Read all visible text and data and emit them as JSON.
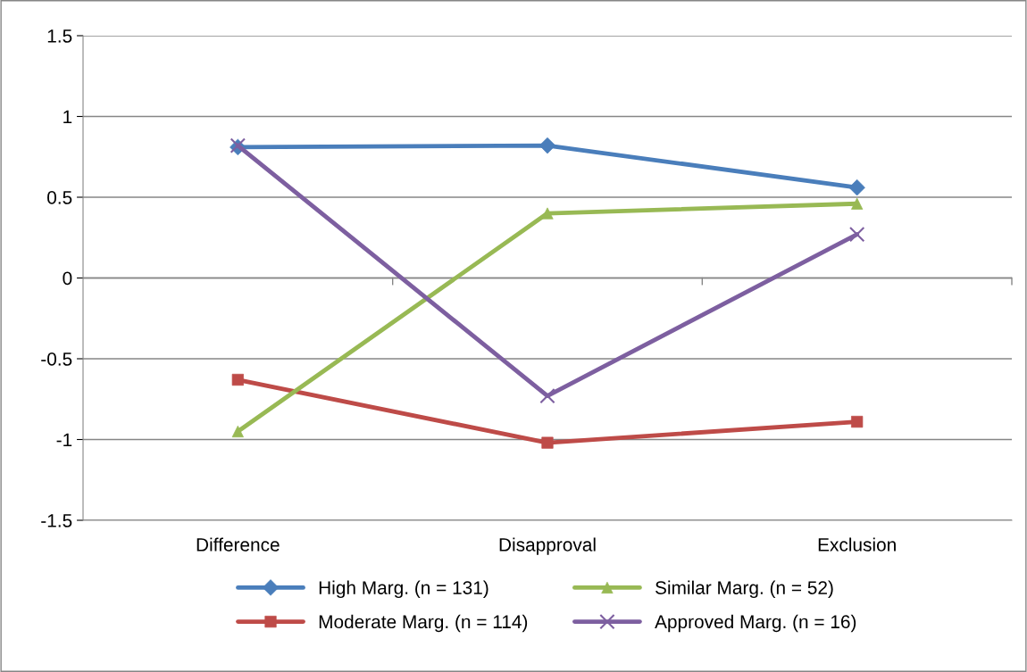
{
  "chart_data": {
    "type": "line",
    "categories": [
      "Difference",
      "Disapproval",
      "Exclusion"
    ],
    "series": [
      {
        "name": "High Marg. (n = 131)",
        "color": "#4a7ebb",
        "marker": "diamond",
        "values": [
          0.81,
          0.82,
          0.56
        ]
      },
      {
        "name": "Moderate Marg. (n = 114)",
        "color": "#be4b48",
        "marker": "square",
        "values": [
          -0.63,
          -1.02,
          -0.89
        ]
      },
      {
        "name": "Similar Marg. (n = 52)",
        "color": "#98b954",
        "marker": "triangle",
        "values": [
          -0.95,
          0.4,
          0.46
        ]
      },
      {
        "name": "Approved Marg. (n = 16)",
        "color": "#7d5fa0",
        "marker": "cross",
        "values": [
          0.82,
          -0.73,
          0.27
        ]
      }
    ],
    "ylim": [
      -1.5,
      1.5
    ],
    "yticks": [
      1.5,
      1,
      0.5,
      0,
      -0.5,
      -1,
      -1.5
    ],
    "grid": "y",
    "legend": "bottom",
    "line_style": "solid"
  }
}
